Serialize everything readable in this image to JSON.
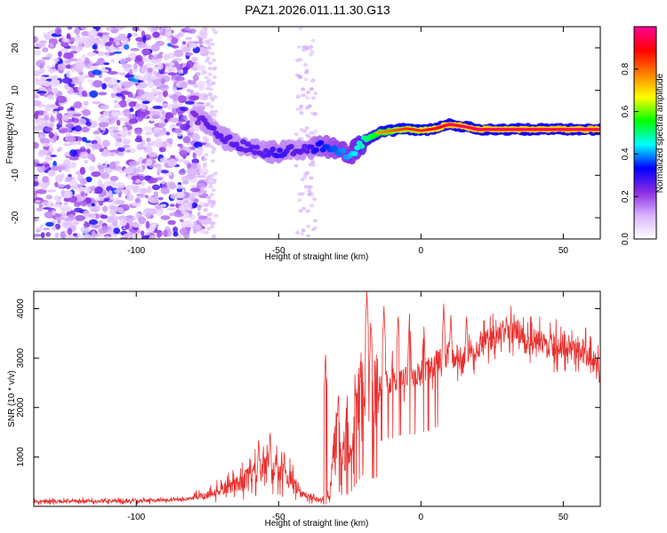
{
  "figure_title": "PAZ1.2026.011.11.30.G13",
  "chart_data": [
    {
      "type": "heatmap",
      "title": "PAZ1.2026.011.11.30.G13",
      "xlabel": "Height of straight line (km)",
      "ylabel": "Frequency (Hz)",
      "xlim": [
        -136,
        63
      ],
      "ylim": [
        -25,
        25
      ],
      "xticks": [
        -100,
        -50,
        0,
        50
      ],
      "yticks": [
        -20,
        -10,
        0,
        10,
        20
      ],
      "colorbar": {
        "label": "Normalized spectral amplitude",
        "range": [
          0,
          1
        ],
        "ticks": [
          0.0,
          0.2,
          0.4,
          0.6,
          0.8
        ],
        "colormap": [
          "#ffffff",
          "#d9b3ff",
          "#8a2be2",
          "#0000ff",
          "#00ffff",
          "#00ff00",
          "#ffff00",
          "#ff8000",
          "#ff0000",
          "#ff0099"
        ]
      },
      "ridge": {
        "x": [
          -80,
          -75,
          -70,
          -65,
          -60,
          -55,
          -50,
          -45,
          -40,
          -35,
          -30,
          -25,
          -20,
          -15,
          -10,
          -5,
          0,
          5,
          10,
          15,
          20,
          25,
          30,
          40,
          50,
          63
        ],
        "frequency": [
          4,
          2,
          -1,
          -2.5,
          -3.5,
          -4.5,
          -4.5,
          -4,
          -4,
          -3,
          -4,
          -5,
          -2,
          0,
          0.5,
          1,
          0.5,
          1,
          2,
          1.5,
          0.8,
          0.8,
          0.8,
          0.8,
          0.8,
          0.8
        ],
        "amplitude": [
          0.3,
          0.35,
          0.35,
          0.35,
          0.35,
          0.35,
          0.4,
          0.35,
          0.35,
          0.45,
          0.5,
          0.55,
          0.65,
          0.75,
          0.8,
          0.85,
          0.85,
          0.9,
          0.95,
          0.95,
          0.95,
          0.95,
          0.95,
          0.95,
          0.95,
          0.95
        ]
      }
    },
    {
      "type": "line",
      "xlabel": "Height of straight line (km)",
      "ylabel": "SNR (10 * v/v)",
      "xlim": [
        -136,
        63
      ],
      "ylim": [
        0,
        4350
      ],
      "xticks": [
        -100,
        -50,
        0,
        50
      ],
      "yticks": [
        1000,
        2000,
        3000,
        4000
      ],
      "color": "#e8302e",
      "series": [
        {
          "name": "SNR",
          "x": [
            -136,
            -120,
            -100,
            -85,
            -80,
            -75,
            -70,
            -65,
            -60,
            -55,
            -50,
            -45,
            -42,
            -38,
            -35,
            -32,
            -30,
            -28,
            -25,
            -22,
            -20,
            -18,
            -15,
            -12,
            -10,
            -8,
            -5,
            -2,
            0,
            3,
            5,
            8,
            10,
            12,
            15,
            18,
            20,
            25,
            30,
            35,
            40,
            45,
            50,
            55,
            60,
            63
          ],
          "values": [
            100,
            100,
            110,
            130,
            170,
            240,
            330,
            450,
            600,
            780,
            700,
            520,
            250,
            150,
            120,
            220,
            1600,
            900,
            1000,
            2100,
            2600,
            2250,
            2350,
            2500,
            2500,
            2600,
            2650,
            2650,
            2700,
            2800,
            2900,
            3000,
            3100,
            3000,
            3050,
            3150,
            3250,
            3400,
            3550,
            3500,
            3350,
            3250,
            3250,
            3200,
            3000,
            2700
          ],
          "spikes": [
            {
              "x": -57,
              "value": 1400
            },
            {
              "x": -53,
              "value": 1550
            },
            {
              "x": -51,
              "value": 1100
            },
            {
              "x": -48,
              "value": 1150
            },
            {
              "x": -33.5,
              "value": 3100
            },
            {
              "x": -29,
              "value": 2300
            },
            {
              "x": -26,
              "value": 2300
            },
            {
              "x": -19,
              "value": 4350
            },
            {
              "x": -17.5,
              "value": 3700
            },
            {
              "x": -13,
              "value": 4050
            },
            {
              "x": -10,
              "value": 3150
            },
            {
              "x": -8,
              "value": 3900
            },
            {
              "x": -4,
              "value": 3900
            },
            {
              "x": 1,
              "value": 3700
            },
            {
              "x": 8,
              "value": 4100
            },
            {
              "x": 10.5,
              "value": 3900
            },
            {
              "x": 16,
              "value": 3900
            },
            {
              "x": 30,
              "value": 3900
            }
          ]
        }
      ]
    }
  ]
}
